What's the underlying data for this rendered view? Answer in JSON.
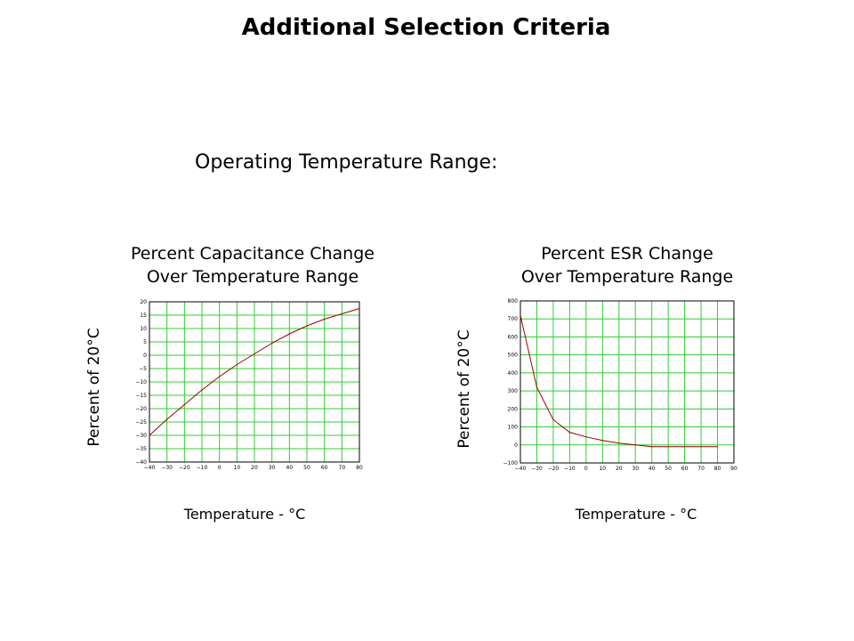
{
  "slide": {
    "title": "Additional Selection Criteria",
    "section_heading": "Operating Temperature Range:"
  },
  "colors": {
    "grid": "#33cc33",
    "curve": "#990000",
    "frame": "#000000"
  },
  "charts": {
    "capacitance": {
      "title_line1": "Percent Capacitance Change",
      "title_line2": "Over Temperature Range",
      "ylabel": "Percent of 20°C",
      "xlabel": "Temperature - °C"
    },
    "esr": {
      "title_line1": "Percent ESR Change",
      "title_line2": "Over Temperature Range",
      "ylabel": "Percent of 20°C",
      "xlabel": "Temperature - °C"
    }
  },
  "chart_data": [
    {
      "type": "line",
      "title": "Percent Capacitance Change Over Temperature Range",
      "xlabel": "Temperature - °C",
      "ylabel": "Percent of 20°C",
      "xlim": [
        -40,
        80
      ],
      "ylim": [
        -40,
        20
      ],
      "xticks": [
        -40,
        -30,
        -20,
        -10,
        0,
        10,
        20,
        30,
        40,
        50,
        60,
        70,
        80
      ],
      "yticks": [
        20,
        15,
        10,
        5,
        0,
        -5,
        -10,
        -15,
        -20,
        -25,
        -30,
        -35,
        -40
      ],
      "grid": true,
      "x": [
        -40,
        -30,
        -20,
        -10,
        0,
        10,
        20,
        30,
        40,
        50,
        60,
        70,
        80
      ],
      "y": [
        -30,
        -24,
        -18.5,
        -13,
        -8,
        -3.5,
        0.5,
        4.5,
        8,
        11,
        13.5,
        15.5,
        17.5
      ]
    },
    {
      "type": "line",
      "title": "Percent ESR Change Over Temperature Range",
      "xlabel": "Temperature - °C",
      "ylabel": "Percent of 20°C",
      "xlim": [
        -40,
        90
      ],
      "ylim": [
        -100,
        800
      ],
      "xticks": [
        -40,
        -30,
        -20,
        -10,
        0,
        10,
        20,
        30,
        40,
        50,
        60,
        70,
        80,
        90
      ],
      "yticks": [
        800,
        700,
        600,
        500,
        400,
        300,
        200,
        100,
        0,
        -100
      ],
      "grid": true,
      "x": [
        -40,
        -30,
        -20,
        -10,
        0,
        10,
        20,
        30,
        40,
        50,
        60,
        70,
        80
      ],
      "y": [
        720,
        320,
        140,
        70,
        45,
        25,
        10,
        0,
        -10,
        -10,
        -10,
        -10,
        -10
      ]
    }
  ]
}
